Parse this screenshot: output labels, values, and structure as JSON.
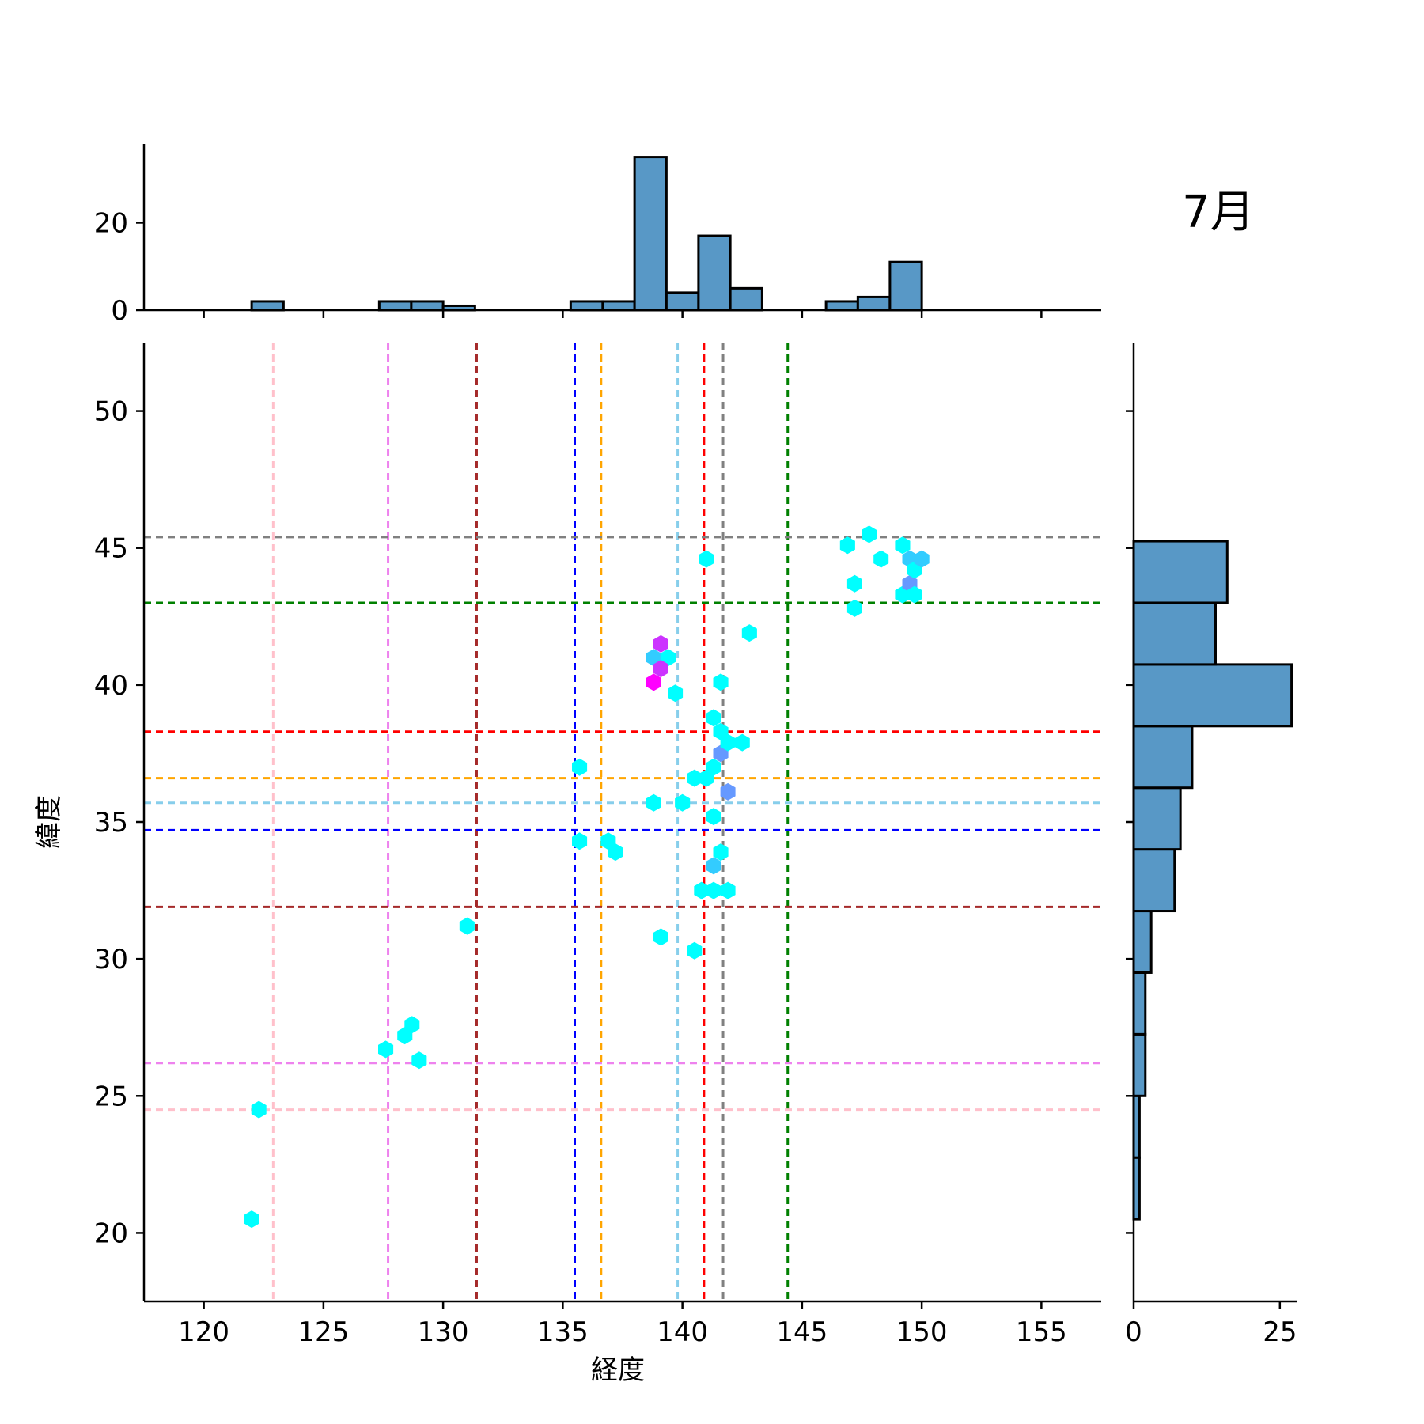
{
  "chart_data": {
    "type": "scatter",
    "subtype": "hexbin jointplot with marginal histograms",
    "title": "7月",
    "xlabel": "経度",
    "ylabel": "緯度",
    "xlim": [
      117.5,
      157.5
    ],
    "ylim": [
      17.5,
      52.5
    ],
    "x_ticks": [
      "120",
      "125",
      "130",
      "135",
      "140",
      "145",
      "150",
      "155"
    ],
    "y_ticks": [
      "20",
      "25",
      "30",
      "35",
      "40",
      "45",
      "50"
    ],
    "grid": false,
    "colormap": "cool (cyan → magenta)",
    "points": [
      {
        "x": 122.0,
        "y": 20.5,
        "color": "#00ffff"
      },
      {
        "x": 122.3,
        "y": 24.5,
        "color": "#00ffff"
      },
      {
        "x": 127.6,
        "y": 26.7,
        "color": "#00ffff"
      },
      {
        "x": 128.4,
        "y": 27.2,
        "color": "#00ffff"
      },
      {
        "x": 128.7,
        "y": 27.6,
        "color": "#00ffff"
      },
      {
        "x": 129.0,
        "y": 26.3,
        "color": "#00ffff"
      },
      {
        "x": 131.0,
        "y": 31.2,
        "color": "#00ffff"
      },
      {
        "x": 135.7,
        "y": 37.0,
        "color": "#00ffff"
      },
      {
        "x": 135.7,
        "y": 34.3,
        "color": "#00ffff"
      },
      {
        "x": 136.9,
        "y": 34.3,
        "color": "#00ffff"
      },
      {
        "x": 137.2,
        "y": 33.9,
        "color": "#00ffff"
      },
      {
        "x": 138.8,
        "y": 35.7,
        "color": "#00ffff"
      },
      {
        "x": 139.1,
        "y": 30.8,
        "color": "#00ffff"
      },
      {
        "x": 138.8,
        "y": 41.0,
        "color": "#33ccff"
      },
      {
        "x": 139.4,
        "y": 41.0,
        "color": "#00ffff"
      },
      {
        "x": 139.1,
        "y": 41.5,
        "color": "#cc33ff"
      },
      {
        "x": 139.1,
        "y": 40.6,
        "color": "#cc33ff"
      },
      {
        "x": 138.8,
        "y": 40.1,
        "color": "#ff00ff"
      },
      {
        "x": 139.7,
        "y": 39.7,
        "color": "#00ffff"
      },
      {
        "x": 140.0,
        "y": 35.7,
        "color": "#00ffff"
      },
      {
        "x": 140.5,
        "y": 36.6,
        "color": "#00ffff"
      },
      {
        "x": 140.5,
        "y": 30.3,
        "color": "#00ffff"
      },
      {
        "x": 140.8,
        "y": 32.5,
        "color": "#00ffff"
      },
      {
        "x": 141.0,
        "y": 44.6,
        "color": "#00ffff"
      },
      {
        "x": 141.0,
        "y": 36.6,
        "color": "#00ffff"
      },
      {
        "x": 141.3,
        "y": 38.8,
        "color": "#00ffff"
      },
      {
        "x": 141.3,
        "y": 37.0,
        "color": "#00ffff"
      },
      {
        "x": 141.3,
        "y": 35.2,
        "color": "#00ffff"
      },
      {
        "x": 141.3,
        "y": 33.4,
        "color": "#33ccff"
      },
      {
        "x": 141.3,
        "y": 32.5,
        "color": "#00ffff"
      },
      {
        "x": 141.6,
        "y": 40.1,
        "color": "#00ffff"
      },
      {
        "x": 141.6,
        "y": 38.3,
        "color": "#00ffff"
      },
      {
        "x": 141.6,
        "y": 37.5,
        "color": "#6699ff"
      },
      {
        "x": 141.6,
        "y": 33.9,
        "color": "#00ffff"
      },
      {
        "x": 141.9,
        "y": 36.1,
        "color": "#6699ff"
      },
      {
        "x": 141.9,
        "y": 37.9,
        "color": "#00ffff"
      },
      {
        "x": 141.9,
        "y": 32.5,
        "color": "#00ffff"
      },
      {
        "x": 142.5,
        "y": 37.9,
        "color": "#00ffff"
      },
      {
        "x": 142.8,
        "y": 41.9,
        "color": "#00ffff"
      },
      {
        "x": 146.9,
        "y": 45.1,
        "color": "#00ffff"
      },
      {
        "x": 147.2,
        "y": 43.7,
        "color": "#00ffff"
      },
      {
        "x": 147.2,
        "y": 42.8,
        "color": "#00ffff"
      },
      {
        "x": 147.8,
        "y": 45.5,
        "color": "#00ffff"
      },
      {
        "x": 148.3,
        "y": 44.6,
        "color": "#00ffff"
      },
      {
        "x": 149.2,
        "y": 45.1,
        "color": "#00ffff"
      },
      {
        "x": 149.2,
        "y": 43.3,
        "color": "#00ffff"
      },
      {
        "x": 149.5,
        "y": 44.6,
        "color": "#33ccff"
      },
      {
        "x": 149.5,
        "y": 43.7,
        "color": "#6699ff"
      },
      {
        "x": 149.7,
        "y": 44.2,
        "color": "#00ffff"
      },
      {
        "x": 149.7,
        "y": 43.3,
        "color": "#00ffff"
      },
      {
        "x": 150.0,
        "y": 44.6,
        "color": "#33ccff"
      }
    ],
    "reference_lines": {
      "vertical": [
        {
          "x": 122.9,
          "color": "#ffc0cb"
        },
        {
          "x": 127.7,
          "color": "#ee82ee"
        },
        {
          "x": 131.4,
          "color": "#a52a2a"
        },
        {
          "x": 135.5,
          "color": "#0000ff"
        },
        {
          "x": 136.6,
          "color": "#ffa500"
        },
        {
          "x": 139.8,
          "color": "#87ceeb"
        },
        {
          "x": 140.9,
          "color": "#ff0000"
        },
        {
          "x": 141.7,
          "color": "#808080"
        },
        {
          "x": 144.4,
          "color": "#008000"
        }
      ],
      "horizontal": [
        {
          "y": 45.4,
          "color": "#808080"
        },
        {
          "y": 43.0,
          "color": "#008000"
        },
        {
          "y": 38.3,
          "color": "#ff0000"
        },
        {
          "y": 36.6,
          "color": "#ffa500"
        },
        {
          "y": 35.7,
          "color": "#87ceeb"
        },
        {
          "y": 34.7,
          "color": "#0000ff"
        },
        {
          "y": 31.9,
          "color": "#a52a2a"
        },
        {
          "y": 26.2,
          "color": "#ee82ee"
        },
        {
          "y": 24.5,
          "color": "#ffc0cb"
        }
      ]
    },
    "marginal_x": {
      "type": "histogram",
      "bin_edges": [
        122.0,
        123.33,
        124.67,
        126.0,
        127.33,
        128.67,
        130.0,
        131.33,
        132.67,
        134.0,
        135.33,
        136.67,
        138.0,
        139.33,
        140.67,
        142.0,
        143.33,
        144.67,
        146.0,
        147.33,
        148.67,
        150.0
      ],
      "counts": [
        2,
        0,
        0,
        0,
        2,
        2,
        1,
        0,
        0,
        0,
        2,
        2,
        35,
        4,
        17,
        5,
        0,
        0,
        2,
        3,
        11
      ],
      "ylim": [
        0,
        38
      ],
      "y_ticks": [
        "0",
        "20"
      ]
    },
    "marginal_y": {
      "type": "histogram",
      "bin_edges": [
        20.5,
        22.75,
        25.0,
        27.25,
        29.5,
        31.75,
        34.0,
        36.25,
        38.5,
        40.75,
        43.0,
        45.25
      ],
      "counts": [
        1,
        1,
        2,
        2,
        3,
        7,
        8,
        10,
        27,
        14,
        16
      ],
      "xlim": [
        0,
        28
      ],
      "x_ticks": [
        "0",
        "25"
      ]
    },
    "bar_color": "#5898c6",
    "legend": "none"
  }
}
